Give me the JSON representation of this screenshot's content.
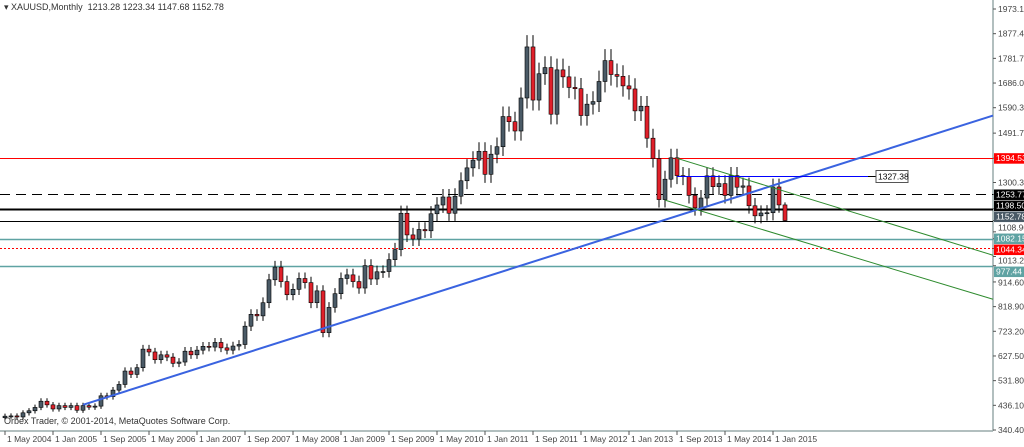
{
  "header": {
    "symbol": "XAUUSD,Monthly",
    "ohlc": "1213.28 1223.34 1147.68 1152.78",
    "menu_icon": "triangle-down-icon"
  },
  "copyright": "Orbex Trader, © 2001-2014, MetaQuotes Software Corp.",
  "chart_data": {
    "type": "candlestick",
    "first_month": "2004-05",
    "ylim": [
      340.4,
      1973.1
    ],
    "grid": false,
    "y_ticks": [
      "1973.10",
      "1877.40",
      "1781.70",
      "1686.00",
      "1590.30",
      "1491.70",
      "1300.30",
      "1108.90",
      "1013.20",
      "914.60",
      "818.90",
      "723.20",
      "627.50",
      "531.80",
      "436.10",
      "340.40"
    ],
    "x_ticks": [
      "1 May 2004",
      "1 Jan 2005",
      "1 Sep 2005",
      "1 May 2006",
      "1 Jan 2007",
      "1 Sep 2007",
      "1 May 2008",
      "1 Jan 2009",
      "1 Sep 2009",
      "1 May 2010",
      "1 Jan 2011",
      "1 Sep 2011",
      "1 May 2012",
      "1 Jan 2013",
      "1 Sep 2013",
      "1 May 2014",
      "1 Jan 2015"
    ],
    "first_open": 388,
    "closes": [
      394,
      395,
      391,
      407,
      415,
      428,
      452,
      438,
      422,
      435,
      428,
      435,
      417,
      435,
      429,
      433,
      473,
      470,
      495,
      517,
      569,
      556,
      582,
      654,
      643,
      613,
      632,
      623,
      599,
      604,
      646,
      632,
      650,
      665,
      662,
      680,
      659,
      650,
      666,
      672,
      743,
      789,
      783,
      834,
      923,
      972,
      916,
      865,
      886,
      928,
      912,
      834,
      880,
      718,
      816,
      869,
      928,
      942,
      916,
      891,
      978,
      926,
      954,
      955,
      1001,
      1040,
      1181,
      1097,
      1081,
      1118,
      1113,
      1179,
      1213,
      1244,
      1181,
      1247,
      1307,
      1357,
      1387,
      1421,
      1332,
      1410,
      1439,
      1556,
      1536,
      1500,
      1628,
      1826,
      1620,
      1722,
      1746,
      1565,
      1737,
      1710,
      1669,
      1664,
      1560,
      1604,
      1614,
      1692,
      1773,
      1719,
      1712,
      1675,
      1663,
      1578,
      1596,
      1472,
      1393,
      1234,
      1313,
      1396,
      1327,
      1323,
      1250,
      1202,
      1240,
      1326,
      1284,
      1296,
      1250,
      1327,
      1282,
      1287,
      1210,
      1171,
      1182,
      1183,
      1283,
      1213.28,
      1152.78
    ],
    "last_candle": {
      "open": 1213.28,
      "high": 1223.34,
      "low": 1147.68,
      "close": 1152.78
    },
    "colors": {
      "bull": "#4a5a66",
      "bear": "#e0202a",
      "wick": "#000000"
    },
    "horizontal_levels": [
      {
        "price": 1394.53,
        "label": "1394.53",
        "color": "#ff0000",
        "style": "solid",
        "label_bg": "#ff0000",
        "label_fg": "#ffffff"
      },
      {
        "price": 1253.77,
        "label": "1253.77",
        "color": "#000000",
        "style": "dashed",
        "label_bg": "#000000",
        "label_fg": "#ffffff"
      },
      {
        "price": 1198.5,
        "label": "1198.50",
        "color": "#000000",
        "style": "thick",
        "label_bg": "#000000",
        "label_fg": "#ffffff"
      },
      {
        "price": 1152.78,
        "label": "1152.78",
        "color": "#000000",
        "style": "solid",
        "label_bg": "#4a5a66",
        "label_fg": "#ffffff"
      },
      {
        "price": 1082.15,
        "label": "1082.15",
        "color": "#5fa3a3",
        "style": "teal",
        "label_bg": "#5fa3a3",
        "label_fg": "#ffffff"
      },
      {
        "price": 1044.34,
        "label": "1044.34",
        "color": "#ff0000",
        "style": "dotted",
        "label_bg": "#ff0000",
        "label_fg": "#ffffff"
      },
      {
        "price": 977.44,
        "label": "977.44",
        "color": "#5fa3a3",
        "style": "teal",
        "label_bg": "#5fa3a3",
        "label_fg": "#ffffff"
      }
    ],
    "price_label": {
      "price": 1327.38,
      "label": "1327.38",
      "from": "2013-09",
      "color": "#0000ff"
    },
    "trendlines": [
      {
        "name": "uptrend",
        "color": "#3a63e0",
        "width": 2,
        "from": [
          "2005-06",
          438
        ],
        "to": [
          "2018-01",
          1555
        ]
      },
      {
        "name": "channel-upper",
        "color": "#2e8b2e",
        "width": 1,
        "from": [
          "2013-09",
          1394
        ],
        "to": [
          "2018-01",
          1023
        ]
      },
      {
        "name": "channel-lower",
        "color": "#2e8b2e",
        "width": 1,
        "from": [
          "2013-07",
          1232
        ],
        "to": [
          "2018-01",
          852
        ]
      }
    ]
  }
}
